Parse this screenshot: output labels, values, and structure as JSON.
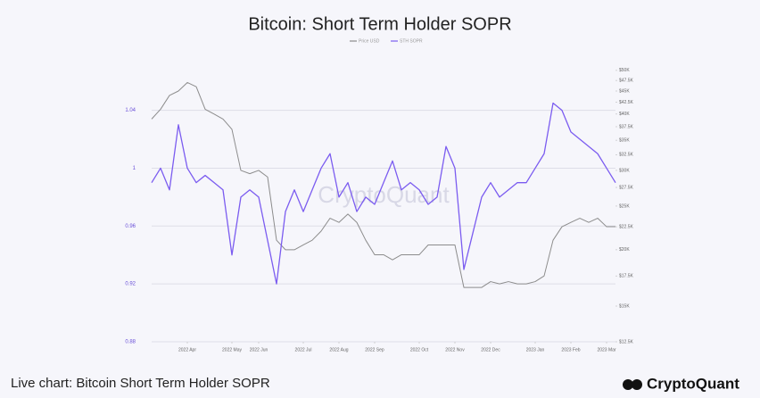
{
  "chart_data": {
    "type": "line",
    "title": "Bitcoin: Short Term Holder SOPR",
    "watermark": "CryptoQuant",
    "caption": "Live chart: Bitcoin Short Term Holder SOPR",
    "brand": "CryptoQuant",
    "categories": [
      null,
      null,
      null,
      null,
      "2022 Apr",
      null,
      null,
      null,
      null,
      "2022 May",
      null,
      null,
      "2022 Jun",
      null,
      null,
      null,
      null,
      "2022 Jul",
      null,
      null,
      null,
      "2022 Aug",
      null,
      null,
      null,
      "2022 Sep",
      null,
      null,
      null,
      null,
      "2022 Oct",
      null,
      null,
      null,
      "2022 Nov",
      null,
      null,
      null,
      "2022 Dec",
      null,
      null,
      null,
      null,
      "2023 Jan",
      null,
      null,
      null,
      "2023 Feb",
      null,
      null,
      null,
      "2023 Mar",
      null
    ],
    "series": [
      {
        "name": "Price USD",
        "color": "#8c8c8c",
        "axis": "y2",
        "values": [
          39000,
          41000,
          44000,
          45000,
          47000,
          46000,
          41000,
          40000,
          39000,
          37000,
          30000,
          29500,
          30000,
          29000,
          21000,
          20000,
          20000,
          20500,
          21000,
          22000,
          23500,
          23000,
          24000,
          23000,
          21000,
          19500,
          19500,
          19000,
          19500,
          19500,
          19500,
          20500,
          20500,
          20500,
          20500,
          16500,
          16500,
          16500,
          17000,
          16800,
          17000,
          16800,
          16800,
          17000,
          17500,
          21000,
          22500,
          23000,
          23500,
          23000,
          23500,
          22500,
          22500
        ]
      },
      {
        "name": "STH SOPR",
        "color": "#7b5cf0",
        "values": [
          0.99,
          1.0,
          0.985,
          1.03,
          1.0,
          0.99,
          0.995,
          0.99,
          0.985,
          0.94,
          0.98,
          0.985,
          0.98,
          0.95,
          0.92,
          0.97,
          0.985,
          0.97,
          0.985,
          1.0,
          1.01,
          0.98,
          0.99,
          0.97,
          0.98,
          0.975,
          0.99,
          1.005,
          0.985,
          0.99,
          0.985,
          0.975,
          0.98,
          1.015,
          1.0,
          0.93,
          0.955,
          0.98,
          0.99,
          0.98,
          0.985,
          0.99,
          0.99,
          1.0,
          1.01,
          1.045,
          1.04,
          1.025,
          1.02,
          1.015,
          1.01,
          1.0,
          0.99
        ]
      }
    ],
    "ylim": [
      0.88,
      1.078
    ],
    "yticks": [
      0.88,
      0.92,
      0.96,
      1,
      1.04
    ],
    "y2lim": [
      12500,
      54000
    ],
    "y2scale": "log",
    "y2ticks": [
      {
        "value": 12500,
        "label": "$12.5K"
      },
      {
        "value": 15000,
        "label": "$15K"
      },
      {
        "value": 17500,
        "label": "$17.5K"
      },
      {
        "value": 20000,
        "label": "$20K"
      },
      {
        "value": 22500,
        "label": "$22.5K"
      },
      {
        "value": 25000,
        "label": "$25K"
      },
      {
        "value": 27500,
        "label": "$27.5K"
      },
      {
        "value": 30000,
        "label": "$30K"
      },
      {
        "value": 32500,
        "label": "$32.5K"
      },
      {
        "value": 35000,
        "label": "$35K"
      },
      {
        "value": 37500,
        "label": "$37.5K"
      },
      {
        "value": 40000,
        "label": "$40K"
      },
      {
        "value": 42500,
        "label": "$42.5K"
      },
      {
        "value": 45000,
        "label": "$45K"
      },
      {
        "value": 47500,
        "label": "$47.5K"
      },
      {
        "value": 50000,
        "label": "$50K"
      }
    ],
    "grid": true
  }
}
